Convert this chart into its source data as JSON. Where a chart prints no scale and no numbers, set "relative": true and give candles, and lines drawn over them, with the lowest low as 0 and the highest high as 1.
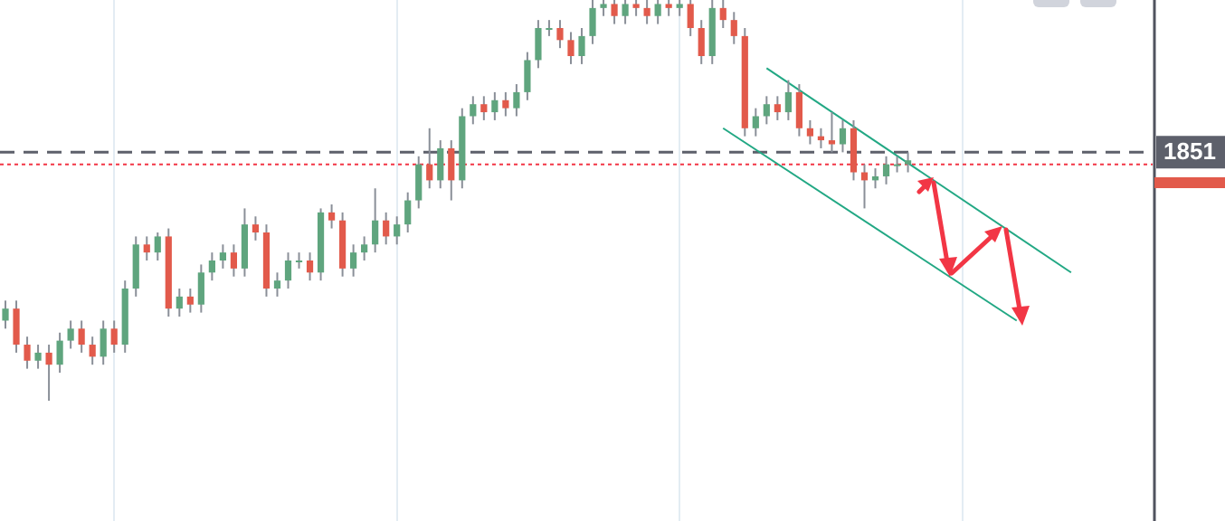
{
  "chart_data": {
    "type": "candlestick",
    "relative": true,
    "grid": "x",
    "categories": [
      null,
      null,
      null,
      null,
      null,
      null,
      null,
      null,
      null,
      null,
      null,
      null,
      null,
      null,
      null,
      null,
      null,
      null,
      null,
      null,
      null,
      null,
      null,
      null,
      null,
      null,
      null,
      null,
      null,
      null,
      null,
      null,
      null,
      null,
      null,
      null,
      null,
      null,
      null,
      null,
      null,
      null,
      null,
      null,
      null,
      null,
      null,
      null,
      null,
      null,
      null,
      null,
      null,
      null,
      null,
      null,
      null,
      null,
      null,
      null,
      null,
      null,
      null,
      null,
      null,
      null,
      null,
      null,
      null,
      null,
      null,
      null,
      null,
      null,
      null,
      null,
      null,
      null,
      null,
      null,
      null,
      null,
      null,
      null,
      null,
      null,
      null,
      null,
      null,
      null,
      null,
      null,
      null,
      null,
      null,
      null,
      null,
      null,
      null,
      null,
      null,
      null,
      null,
      null,
      null,
      null
    ],
    "ohlc": [
      [
        0.2,
        0.25,
        0.18,
        0.23
      ],
      [
        0.23,
        0.25,
        0.12,
        0.14
      ],
      [
        0.14,
        0.16,
        0.08,
        0.1
      ],
      [
        0.1,
        0.14,
        0.08,
        0.12
      ],
      [
        0.12,
        0.14,
        0,
        0.09
      ],
      [
        0.09,
        0.17,
        0.07,
        0.15
      ],
      [
        0.15,
        0.2,
        0.13,
        0.18
      ],
      [
        0.18,
        0.2,
        0.12,
        0.14
      ],
      [
        0.14,
        0.16,
        0.09,
        0.11
      ],
      [
        0.11,
        0.2,
        0.09,
        0.18
      ],
      [
        0.18,
        0.2,
        0.12,
        0.14
      ],
      [
        0.14,
        0.3,
        0.12,
        0.28
      ],
      [
        0.28,
        0.41,
        0.26,
        0.39
      ],
      [
        0.39,
        0.41,
        0.35,
        0.37
      ],
      [
        0.37,
        0.42,
        0.35,
        0.41
      ],
      [
        0.41,
        0.43,
        0.21,
        0.23
      ],
      [
        0.23,
        0.28,
        0.21,
        0.26
      ],
      [
        0.26,
        0.28,
        0.22,
        0.24
      ],
      [
        0.24,
        0.34,
        0.22,
        0.32
      ],
      [
        0.32,
        0.37,
        0.3,
        0.35
      ],
      [
        0.35,
        0.39,
        0.33,
        0.37
      ],
      [
        0.37,
        0.39,
        0.31,
        0.33
      ],
      [
        0.33,
        0.48,
        0.31,
        0.44
      ],
      [
        0.44,
        0.46,
        0.4,
        0.42
      ],
      [
        0.42,
        0.44,
        0.26,
        0.28
      ],
      [
        0.28,
        0.32,
        0.26,
        0.3
      ],
      [
        0.3,
        0.37,
        0.28,
        0.35
      ],
      [
        0.35,
        0.37,
        0.33,
        0.35
      ],
      [
        0.35,
        0.37,
        0.3,
        0.32
      ],
      [
        0.32,
        0.48,
        0.3,
        0.47
      ],
      [
        0.47,
        0.49,
        0.43,
        0.45
      ],
      [
        0.45,
        0.47,
        0.31,
        0.33
      ],
      [
        0.33,
        0.39,
        0.31,
        0.37
      ],
      [
        0.37,
        0.41,
        0.35,
        0.39
      ],
      [
        0.39,
        0.53,
        0.37,
        0.45
      ],
      [
        0.45,
        0.47,
        0.39,
        0.41
      ],
      [
        0.41,
        0.46,
        0.39,
        0.44
      ],
      [
        0.44,
        0.52,
        0.42,
        0.5
      ],
      [
        0.5,
        0.61,
        0.48,
        0.59
      ],
      [
        0.59,
        0.68,
        0.53,
        0.55
      ],
      [
        0.55,
        0.65,
        0.53,
        0.63
      ],
      [
        0.63,
        0.65,
        0.5,
        0.55
      ],
      [
        0.55,
        0.73,
        0.53,
        0.71
      ],
      [
        0.71,
        0.76,
        0.69,
        0.74
      ],
      [
        0.74,
        0.76,
        0.7,
        0.72
      ],
      [
        0.72,
        0.77,
        0.7,
        0.75
      ],
      [
        0.75,
        0.77,
        0.71,
        0.73
      ],
      [
        0.73,
        0.79,
        0.71,
        0.77
      ],
      [
        0.77,
        0.87,
        0.75,
        0.85
      ],
      [
        0.85,
        0.95,
        0.83,
        0.93
      ],
      [
        0.93,
        0.95,
        0.91,
        0.93
      ],
      [
        0.93,
        0.95,
        0.88,
        0.9
      ],
      [
        0.9,
        0.92,
        0.84,
        0.86
      ],
      [
        0.86,
        0.93,
        0.84,
        0.91
      ],
      [
        0.91,
        1,
        0.89,
        0.98
      ],
      [
        0.98,
        1,
        0.96,
        0.99
      ],
      [
        0.99,
        1,
        0.94,
        0.96
      ],
      [
        0.96,
        1,
        0.94,
        0.99
      ],
      [
        0.99,
        1,
        0.96,
        0.98
      ],
      [
        0.98,
        1,
        0.94,
        0.96
      ],
      [
        0.96,
        1,
        0.94,
        0.99
      ],
      [
        0.99,
        1,
        0.96,
        0.98
      ],
      [
        0.98,
        1,
        0.96,
        0.99
      ],
      [
        0.99,
        1,
        0.91,
        0.93
      ],
      [
        0.93,
        0.95,
        0.84,
        0.86
      ],
      [
        0.86,
        1,
        0.84,
        0.98
      ],
      [
        0.98,
        1,
        0.93,
        0.95
      ],
      [
        0.95,
        0.97,
        0.89,
        0.91
      ],
      [
        0.91,
        0.93,
        0.66,
        0.68
      ],
      [
        0.68,
        0.73,
        0.66,
        0.71
      ],
      [
        0.71,
        0.76,
        0.69,
        0.74
      ],
      [
        0.74,
        0.76,
        0.7,
        0.72
      ],
      [
        0.72,
        0.8,
        0.7,
        0.77
      ],
      [
        0.77,
        0.79,
        0.66,
        0.68
      ],
      [
        0.68,
        0.7,
        0.64,
        0.66
      ],
      [
        0.66,
        0.68,
        0.63,
        0.65
      ],
      [
        0.65,
        0.72,
        0.62,
        0.64
      ],
      [
        0.64,
        0.7,
        0.62,
        0.68
      ],
      [
        0.68,
        0.7,
        0.55,
        0.57
      ],
      [
        0.57,
        0.59,
        0.48,
        0.55
      ],
      [
        0.55,
        0.58,
        0.53,
        0.56
      ],
      [
        0.56,
        0.61,
        0.54,
        0.59
      ],
      [
        0.59,
        0.61,
        0.57,
        0.59
      ],
      [
        0.59,
        0.62,
        0.57,
        0.6
      ],
      null,
      null,
      null,
      null,
      null,
      null,
      null,
      null,
      null,
      null,
      null,
      null,
      null,
      null,
      null,
      null,
      null,
      null,
      null,
      null,
      null,
      null
    ],
    "colors": [
      "#5fa57e",
      "#e25a4b",
      "#e25a4b",
      "#5fa57e",
      "#e25a4b",
      "#5fa57e",
      "#5fa57e",
      "#e25a4b",
      "#e25a4b",
      "#5fa57e",
      "#e25a4b",
      "#5fa57e",
      "#5fa57e",
      "#e25a4b",
      "#5fa57e",
      "#e25a4b",
      "#5fa57e",
      "#e25a4b",
      "#5fa57e",
      "#5fa57e",
      "#5fa57e",
      "#e25a4b",
      "#5fa57e",
      "#e25a4b",
      "#e25a4b",
      "#5fa57e",
      "#5fa57e",
      "#5fa57e",
      "#e25a4b",
      "#5fa57e",
      "#e25a4b",
      "#e25a4b",
      "#5fa57e",
      "#5fa57e",
      "#5fa57e",
      "#e25a4b",
      "#5fa57e",
      "#5fa57e",
      "#5fa57e",
      "#e25a4b",
      "#5fa57e",
      "#e25a4b",
      "#5fa57e",
      "#5fa57e",
      "#e25a4b",
      "#5fa57e",
      "#e25a4b",
      "#5fa57e",
      "#5fa57e",
      "#5fa57e",
      "#5fa57e",
      "#e25a4b",
      "#e25a4b",
      "#5fa57e",
      "#5fa57e",
      "#5fa57e",
      "#e25a4b",
      "#5fa57e",
      "#e25a4b",
      "#e25a4b",
      "#5fa57e",
      "#e25a4b",
      "#5fa57e",
      "#e25a4b",
      "#e25a4b",
      "#5fa57e",
      "#e25a4b",
      "#e25a4b",
      "#e25a4b",
      "#5fa57e",
      "#5fa57e",
      "#e25a4b",
      "#5fa57e",
      "#e25a4b",
      "#e25a4b",
      "#e25a4b",
      "#e25a4b",
      "#5fa57e",
      "#e25a4b",
      "#e25a4b",
      "#5fa57e",
      "#5fa57e",
      "#5fa57e",
      "#5fa57e",
      null,
      null,
      null,
      null,
      null,
      null,
      null,
      null,
      null,
      null,
      null,
      null,
      null,
      null,
      null,
      null,
      null,
      null,
      null,
      null,
      null,
      null
    ],
    "annotations": [
      "1851"
    ],
    "series": [
      {
        "type": "line",
        "color": "#22a884",
        "values": [
          null,
          null,
          null,
          null,
          null,
          null,
          null,
          null,
          null,
          null,
          null,
          null,
          null,
          null,
          null,
          null,
          null,
          null,
          null,
          null,
          null,
          null,
          null,
          null,
          null,
          null,
          null,
          null,
          null,
          null,
          null,
          null,
          null,
          null,
          null,
          null,
          null,
          null,
          null,
          null,
          null,
          null,
          null,
          null,
          null,
          null,
          null,
          null,
          null,
          null,
          null,
          null,
          null,
          null,
          null,
          null,
          null,
          null,
          null,
          null,
          null,
          null,
          null,
          null,
          null,
          null,
          null,
          null,
          null,
          null,
          0.83,
          null,
          null,
          null,
          null,
          null,
          null,
          null,
          null,
          null,
          null,
          null,
          null,
          null,
          null,
          null,
          null,
          null,
          null,
          null,
          null,
          null,
          null,
          null,
          null,
          null,
          null,
          null,
          0.32,
          null,
          null,
          null,
          null,
          null,
          null,
          null
        ]
      },
      {
        "type": "line",
        "color": "#22a884",
        "values": [
          null,
          null,
          null,
          null,
          null,
          null,
          null,
          null,
          null,
          null,
          null,
          null,
          null,
          null,
          null,
          null,
          null,
          null,
          null,
          null,
          null,
          null,
          null,
          null,
          null,
          null,
          null,
          null,
          null,
          null,
          null,
          null,
          null,
          null,
          null,
          null,
          null,
          null,
          null,
          null,
          null,
          null,
          null,
          null,
          null,
          null,
          null,
          null,
          null,
          null,
          null,
          null,
          null,
          null,
          null,
          null,
          null,
          null,
          null,
          null,
          null,
          null,
          null,
          null,
          null,
          null,
          0.68,
          null,
          null,
          null,
          null,
          null,
          null,
          null,
          null,
          null,
          null,
          null,
          null,
          null,
          null,
          null,
          null,
          null,
          null,
          null,
          null,
          null,
          null,
          null,
          null,
          null,
          null,
          0.2,
          null,
          null,
          null,
          null,
          null,
          null,
          null,
          null,
          null,
          null,
          null,
          null
        ]
      }
    ],
    "ref_lines": [
      {
        "axis": "y",
        "value": 0.62,
        "color": "#5d606b",
        "line_style": "dashed"
      },
      {
        "axis": "y",
        "value": 0.59,
        "color": "#f23645",
        "line_style": "dotted"
      }
    ]
  }
}
